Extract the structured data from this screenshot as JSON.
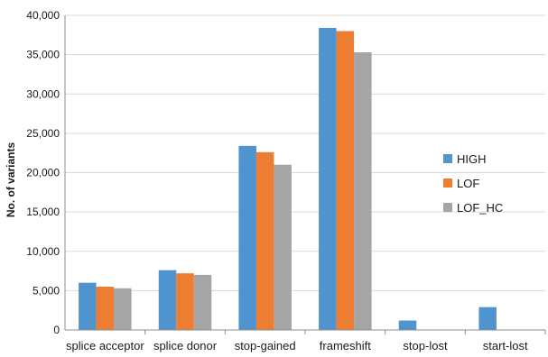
{
  "chart_data": {
    "type": "bar",
    "title": "",
    "xlabel": "",
    "ylabel": "No. of variants",
    "ylim": [
      0,
      40000
    ],
    "yticks": [
      0,
      5000,
      10000,
      15000,
      20000,
      25000,
      30000,
      35000,
      40000
    ],
    "ytick_labels": [
      "0",
      "5,000",
      "10,000",
      "15,000",
      "20,000",
      "25,000",
      "30,000",
      "35,000",
      "40,000"
    ],
    "grid": true,
    "legend_position": "right",
    "categories": [
      "splice acceptor",
      "splice donor",
      "stop-gained",
      "frameshift",
      "stop-lost",
      "start-lost"
    ],
    "series": [
      {
        "name": "HIGH",
        "color": "#4f93cf",
        "values": [
          6000,
          7600,
          23400,
          38400,
          1200,
          2900
        ]
      },
      {
        "name": "LOF",
        "color": "#ed7d31",
        "values": [
          5500,
          7200,
          22600,
          38000,
          0,
          0
        ]
      },
      {
        "name": "LOF_HC",
        "color": "#a5a5a5",
        "values": [
          5300,
          7000,
          21000,
          35300,
          0,
          0
        ]
      }
    ]
  }
}
